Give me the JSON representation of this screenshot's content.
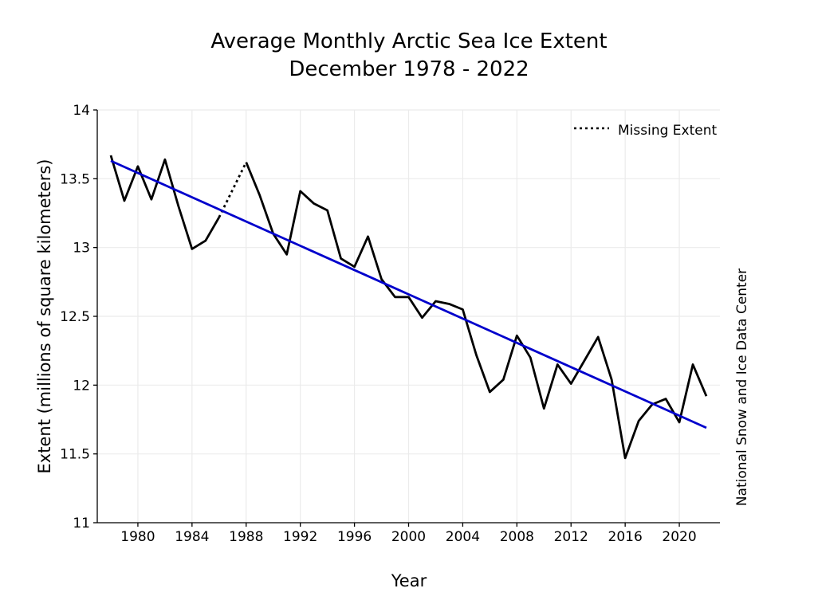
{
  "chart_data": {
    "type": "line",
    "title": [
      "Average Monthly Arctic Sea Ice Extent",
      "December 1978 - 2022"
    ],
    "xlabel": "Year",
    "ylabel": "Extent (millions of square kilometers)",
    "xlim": [
      1977.0,
      2023.0
    ],
    "ylim": [
      11,
      14
    ],
    "xticks": [
      1980,
      1984,
      1988,
      1992,
      1996,
      2000,
      2004,
      2008,
      2012,
      2016,
      2020
    ],
    "yticks": [
      11,
      11.5,
      12,
      12.5,
      13,
      13.5,
      14
    ],
    "ytick_labels": [
      "11",
      "11.5",
      "12",
      "12.5",
      "13",
      "13.5",
      "14"
    ],
    "grid": true,
    "legend": {
      "position": "top-right",
      "entries": [
        "Missing Extent"
      ]
    },
    "credit": "National Snow and Ice Data Center",
    "colors": {
      "extent": "#000000",
      "trend": "#0000cc",
      "grid": "#ebebeb"
    },
    "series": [
      {
        "values": [
          [
            1978,
            13.67
          ],
          [
            1979,
            13.34
          ],
          [
            1980,
            13.59
          ],
          [
            1981,
            13.35
          ],
          [
            1982,
            13.64
          ],
          [
            1983,
            13.3
          ],
          [
            1984,
            12.99
          ],
          [
            1985,
            13.05
          ],
          [
            1986,
            13.22
          ],
          [
            1987,
            null
          ],
          [
            1988,
            13.62
          ],
          [
            1989,
            13.38
          ],
          [
            1990,
            13.1
          ],
          [
            1991,
            12.95
          ],
          [
            1992,
            13.41
          ],
          [
            1993,
            13.32
          ],
          [
            1994,
            13.27
          ],
          [
            1995,
            12.92
          ],
          [
            1996,
            12.86
          ],
          [
            1997,
            13.08
          ],
          [
            1998,
            12.77
          ],
          [
            1999,
            12.64
          ],
          [
            2000,
            12.64
          ],
          [
            2001,
            12.49
          ],
          [
            2002,
            12.61
          ],
          [
            2003,
            12.59
          ],
          [
            2004,
            12.55
          ],
          [
            2005,
            12.22
          ],
          [
            2006,
            11.95
          ],
          [
            2007,
            12.04
          ],
          [
            2008,
            12.36
          ],
          [
            2009,
            12.2
          ],
          [
            2010,
            11.83
          ],
          [
            2011,
            12.15
          ],
          [
            2012,
            12.01
          ],
          [
            2013,
            12.18
          ],
          [
            2014,
            12.35
          ],
          [
            2015,
            12.04
          ],
          [
            2016,
            11.47
          ],
          [
            2017,
            11.74
          ],
          [
            2018,
            11.86
          ],
          [
            2019,
            11.9
          ],
          [
            2020,
            11.73
          ],
          [
            2021,
            12.15
          ],
          [
            2022,
            11.92
          ]
        ]
      },
      {
        "name": "Missing Extent",
        "style": "dotted",
        "values": [
          [
            1986,
            13.22
          ],
          [
            1988,
            13.62
          ]
        ]
      },
      {
        "style": "trend",
        "values": [
          [
            1978,
            13.63
          ],
          [
            2022,
            11.69
          ]
        ]
      }
    ]
  }
}
